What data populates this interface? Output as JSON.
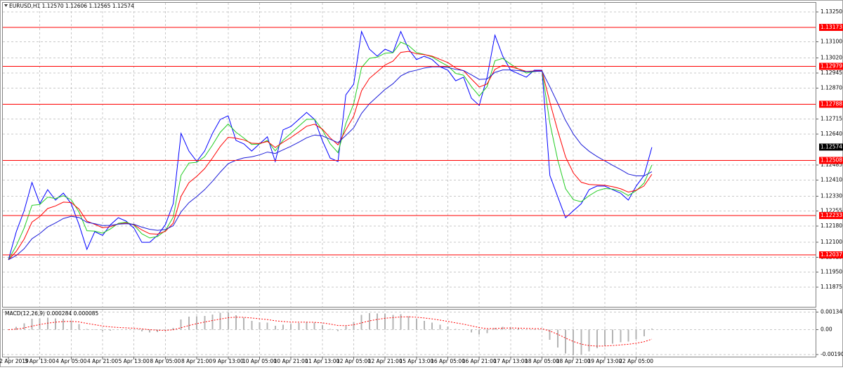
{
  "chart_data": [
    {
      "type": "line",
      "title": "EURUSD,H1 1.12570 1.12606 1.12565 1.12574",
      "categories": [
        "2 Apr 2019",
        null,
        null,
        null,
        "3 Apr 13:00",
        null,
        null,
        null,
        "4 Apr 05:00",
        null,
        null,
        null,
        "4 Apr 21:00",
        null,
        null,
        null,
        "5 Apr 13:00",
        null,
        null,
        null,
        "8 Apr 05:00",
        null,
        null,
        null,
        "8 Apr 21:00",
        null,
        null,
        null,
        "9 Apr 13:00",
        null,
        null,
        null,
        "10 Apr 05:00",
        null,
        null,
        null,
        "10 Apr 21:00",
        null,
        null,
        null,
        "11 Apr 13:00",
        null,
        null,
        null,
        "12 Apr 05:00",
        null,
        null,
        null,
        "12 Apr 21:00",
        null,
        null,
        null,
        "15 Apr 13:00",
        null,
        null,
        null,
        "16 Apr 05:00",
        null,
        null,
        null,
        "16 Apr 21:00",
        null,
        null,
        null,
        "17 Apr 13:00",
        null,
        null,
        null,
        "18 Apr 05:00",
        null,
        null,
        null,
        "18 Apr 21:00",
        null,
        null,
        null,
        "19 Apr 13:00",
        null,
        null,
        null,
        "22 Apr 05:00",
        null,
        null
      ],
      "series": [
        {
          "color": "#0000ff",
          "values": [
            1.12012,
            1.12152,
            1.12257,
            1.12398,
            1.12292,
            1.12362,
            1.1231,
            1.12345,
            1.12292,
            1.12187,
            1.12064,
            1.12152,
            1.12134,
            1.12187,
            1.12222,
            1.12205,
            1.1217,
            1.12099,
            1.12099,
            1.12134,
            1.12187,
            1.12292,
            1.12643,
            1.12555,
            1.12503,
            1.12555,
            1.12643,
            1.12713,
            1.12731,
            1.12608,
            1.12591,
            1.12555,
            1.12591,
            1.12626,
            1.12503,
            1.12661,
            1.12678,
            1.12713,
            1.12748,
            1.12713,
            1.12608,
            1.1252,
            1.12503,
            1.12836,
            1.12889,
            1.13152,
            1.13064,
            1.13029,
            1.13064,
            1.13047,
            1.13152,
            1.13064,
            1.13012,
            1.13029,
            1.13012,
            1.12976,
            1.12959,
            1.12906,
            1.12924,
            1.12819,
            1.12783,
            1.12924,
            1.13134,
            1.13029,
            1.12959,
            1.12941,
            1.12924,
            1.12959,
            1.12959,
            1.12433,
            1.12327,
            1.12222,
            1.12257,
            1.12292,
            1.12362,
            1.1238,
            1.1238,
            1.12362,
            1.12345,
            1.1231,
            1.1238,
            1.12433,
            1.12574
          ]
        },
        {
          "color": "#22cc22",
          "values": [
            1.12012,
            1.12082,
            1.1217,
            1.12284,
            1.12288,
            1.12325,
            1.12318,
            1.12332,
            1.12312,
            1.1225,
            1.12157,
            1.12155,
            1.12145,
            1.12166,
            1.12194,
            1.122,
            1.12185,
            1.12142,
            1.12121,
            1.12128,
            1.12158,
            1.12225,
            1.12434,
            1.12495,
            1.12499,
            1.12527,
            1.12585,
            1.12649,
            1.1269,
            1.12649,
            1.1262,
            1.12588,
            1.1259,
            1.12608,
            1.12556,
            1.12609,
            1.12644,
            1.12679,
            1.12714,
            1.12714,
            1.12661,
            1.12591,
            1.12547,
            1.12692,
            1.12791,
            1.12972,
            1.13018,
            1.13024,
            1.13044,
            1.13046,
            1.13099,
            1.13082,
            1.13047,
            1.13038,
            1.13025,
            1.13001,
            1.1298,
            1.12943,
            1.12934,
            1.12877,
            1.1283,
            1.12877,
            1.13006,
            1.13018,
            1.12989,
            1.12965,
            1.12945,
            1.12952,
            1.12956,
            1.12695,
            1.12511,
            1.12367,
            1.12312,
            1.12302,
            1.12332,
            1.12356,
            1.12368,
            1.12365,
            1.12355,
            1.12333,
            1.12357,
            1.12395,
            1.12485
          ]
        },
        {
          "color": "#ff0000",
          "values": [
            1.12012,
            1.12054,
            1.12115,
            1.122,
            1.12228,
            1.12268,
            1.12281,
            1.123,
            1.12298,
            1.12265,
            1.12205,
            1.12189,
            1.12172,
            1.12177,
            1.12191,
            1.12195,
            1.12187,
            1.12161,
            1.12142,
            1.1214,
            1.12154,
            1.12195,
            1.12329,
            1.12397,
            1.12429,
            1.12467,
            1.1252,
            1.12578,
            1.12624,
            1.12619,
            1.12611,
            1.12594,
            1.12593,
            1.12603,
            1.12573,
            1.12599,
            1.12623,
            1.1265,
            1.12679,
            1.12689,
            1.12665,
            1.12621,
            1.12586,
            1.12661,
            1.12729,
            1.12856,
            1.12918,
            1.12951,
            1.12985,
            1.13004,
            1.13048,
            1.13053,
            1.13041,
            1.13037,
            1.13029,
            1.13013,
            1.12997,
            1.1297,
            1.12956,
            1.12915,
            1.12875,
            1.1289,
            1.12963,
            1.12983,
            1.12976,
            1.12965,
            1.12953,
            1.12955,
            1.12956,
            1.12799,
            1.12657,
            1.12526,
            1.12445,
            1.12399,
            1.12388,
            1.12386,
            1.12384,
            1.12377,
            1.12367,
            1.1235,
            1.12359,
            1.12381,
            1.12439
          ]
        },
        {
          "color": "#1c1cd8",
          "values": [
            1.12012,
            1.12033,
            1.12067,
            1.12117,
            1.12143,
            1.12176,
            1.12196,
            1.12218,
            1.12229,
            1.12223,
            1.12199,
            1.12192,
            1.12183,
            1.12184,
            1.1219,
            1.12192,
            1.12189,
            1.12175,
            1.12164,
            1.12159,
            1.12163,
            1.12182,
            1.12251,
            1.12297,
            1.12328,
            1.12362,
            1.12404,
            1.1245,
            1.12492,
            1.12509,
            1.12521,
            1.12526,
            1.12536,
            1.1255,
            1.12543,
            1.12561,
            1.12579,
            1.12599,
            1.12621,
            1.12635,
            1.12631,
            1.12614,
            1.12597,
            1.12633,
            1.12671,
            1.12743,
            1.12791,
            1.12827,
            1.12863,
            1.12891,
            1.1293,
            1.1295,
            1.12959,
            1.1297,
            1.12976,
            1.12976,
            1.12973,
            1.12963,
            1.12957,
            1.12936,
            1.12913,
            1.12915,
            1.12948,
            1.1296,
            1.1296,
            1.12957,
            1.12952,
            1.12953,
            1.12954,
            1.12876,
            1.12794,
            1.12708,
            1.1264,
            1.12588,
            1.12554,
            1.12528,
            1.12506,
            1.12484,
            1.12463,
            1.1244,
            1.12431,
            1.12431,
            1.12452
          ]
        }
      ],
      "ylim": [
        1.11777,
        1.13292
      ],
      "yticks": [
        {
          "value": 1.1325,
          "label": "1.13250"
        },
        {
          "value": 1.131,
          "label": "1.13100"
        },
        {
          "value": 1.1302,
          "label": "1.13020"
        },
        1.12945,
        {
          "value": 1.1287,
          "label": "1.12870"
        },
        1.12715,
        {
          "value": 1.1264,
          "label": "1.12640"
        },
        1.12485,
        {
          "value": 1.1241,
          "label": "1.12410"
        },
        {
          "value": 1.1233,
          "label": "1.12330"
        },
        1.12255,
        {
          "value": 1.1218,
          "label": "1.12180"
        },
        {
          "value": 1.121,
          "label": "1.12100"
        },
        1.12025,
        {
          "value": 1.1195,
          "label": "1.11950"
        },
        1.11875
      ],
      "levels": [
        1.13173,
        1.12979,
        1.12788,
        1.12508,
        1.12233,
        1.12037
      ],
      "level_color": "#ff0000",
      "current_price": 1.12574,
      "grid": true
    },
    {
      "type": "macd",
      "title": "MACD(12,26,9) 0.000284 0.000085",
      "series": [
        {
          "type": "bar",
          "color": "#b4b4b4",
          "values": [
            0,
            0.00021,
            0.00048,
            0.00083,
            0.00085,
            0.00092,
            0.00085,
            0.00082,
            0.00069,
            0.00042,
            6e-05,
            -3e-05,
            -0.00011,
            -7e-05,
            1e-05,
            3e-05,
            -2e-05,
            -0.00014,
            -0.00022,
            -0.00019,
            -9e-05,
            0.00013,
            0.00078,
            0.001,
            0.00101,
            0.00105,
            0.00116,
            0.00128,
            0.00132,
            0.0011,
            0.0009,
            0.00068,
            0.00057,
            0.00053,
            0.0003,
            0.00038,
            0.00044,
            0.00051,
            0.00058,
            0.00054,
            0.00034,
            7e-05,
            -0.00011,
            0.00028,
            0.00058,
            0.00113,
            0.00127,
            0.00124,
            0.00122,
            0.00113,
            0.00118,
            0.00103,
            0.00082,
            0.00067,
            0.00053,
            0.00037,
            0.00024,
            7e-05,
            -1e-05,
            -0.00021,
            -0.00038,
            -0.00025,
            0.00015,
            0.00023,
            0.00016,
            8e-05,
            1e-05,
            2e-05,
            2e-05,
            -0.00077,
            -0.00137,
            -0.00182,
            -0.00195,
            -0.00189,
            -0.00166,
            -0.00142,
            -0.00122,
            -0.00107,
            -0.00096,
            -0.0009,
            -0.00072,
            -0.0005,
            8e-05
          ]
        },
        {
          "type": "line",
          "color": "#ff0000",
          "values": [
            0,
            4e-05,
            0.00013,
            0.00027,
            0.00039,
            0.0005,
            0.00057,
            0.00062,
            0.00063,
            0.00059,
            0.00048,
            0.00038,
            0.00028,
            0.00021,
            0.00017,
            0.00014,
            0.00011,
            6e-05,
            0,
            -4e-05,
            -5e-05,
            -1e-05,
            0.00015,
            0.00032,
            0.00046,
            0.00058,
            0.0007,
            0.00081,
            0.00091,
            0.00095,
            0.00094,
            0.00089,
            0.00083,
            0.00077,
            0.00068,
            0.00062,
            0.00058,
            0.00057,
            0.00057,
            0.00056,
            0.00052,
            0.00043,
            0.00032,
            0.00031,
            0.00037,
            0.00052,
            0.00067,
            0.00078,
            0.00087,
            0.00092,
            0.00097,
            0.00098,
            0.00095,
            0.00089,
            0.00082,
            0.00073,
            0.00063,
            0.00052,
            0.00042,
            0.00029,
            0.00016,
            8e-05,
            9e-05,
            0.00012,
            0.00013,
            0.00012,
            0.0001,
            8e-05,
            7e-05,
            -0.0001,
            -0.00035,
            -0.00064,
            -0.0009,
            -0.0011,
            -0.00121,
            -0.00125,
            -0.00124,
            -0.00121,
            -0.00116,
            -0.00111,
            -0.00103,
            -0.00092,
            -0.00072
          ]
        }
      ],
      "ylim": [
        -0.002,
        0.00142
      ],
      "yticks": [
        0.001347,
        {
          "value": 0,
          "label": "0.00"
        },
        -0.001904
      ]
    }
  ]
}
